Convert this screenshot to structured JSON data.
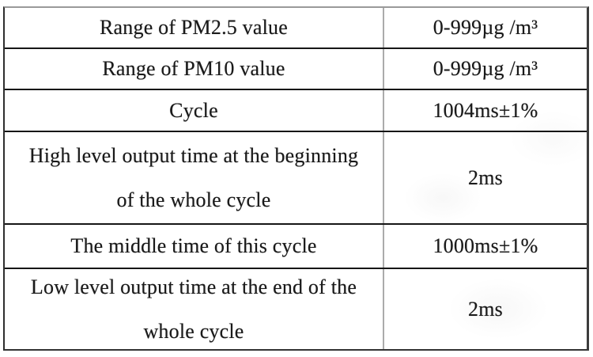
{
  "page": {
    "background_color": "#ffffff",
    "text_color": "#1a1a1a",
    "border_dark_color": "#161616",
    "divider_gray_color": "#ababab"
  },
  "table": {
    "rows": [
      {
        "parameter_lines": [
          "Range of PM2.5 value"
        ],
        "value": "0-999µg /m³"
      },
      {
        "parameter_lines": [
          "Range of PM10 value"
        ],
        "value": "0-999µg /m³"
      },
      {
        "parameter_lines": [
          "Cycle"
        ],
        "value": "1004ms±1%"
      },
      {
        "parameter_lines": [
          "High level output time at the beginning",
          "of the whole cycle"
        ],
        "value": "2ms"
      },
      {
        "parameter_lines": [
          "The middle time of this cycle"
        ],
        "value": "1000ms±1%"
      },
      {
        "parameter_lines": [
          "Low level output time at the end of the",
          "whole cycle"
        ],
        "value": "2ms"
      }
    ]
  }
}
